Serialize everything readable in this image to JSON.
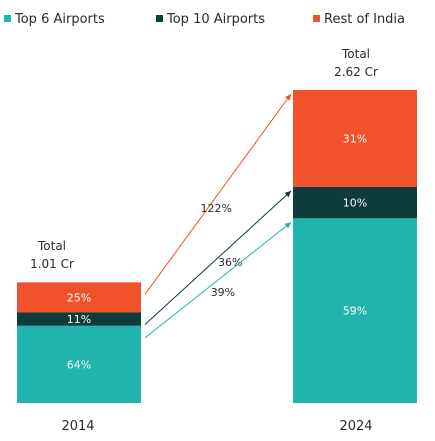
{
  "chart_data": {
    "type": "bar",
    "stacked": true,
    "categories": [
      "2014",
      "2024"
    ],
    "series": [
      {
        "name": "Top 6 Airports",
        "color": "#21b3ad",
        "values": [
          64,
          59
        ],
        "labels": [
          "64%",
          "59%"
        ]
      },
      {
        "name": "Top 10 Airports",
        "color": "#0e3b3c",
        "values": [
          11,
          10
        ],
        "labels": [
          "11%",
          "10%"
        ]
      },
      {
        "name": "Rest of India",
        "color": "#f0532c",
        "values": [
          25,
          31
        ],
        "labels": [
          "25%",
          "31%"
        ]
      }
    ],
    "totals": [
      {
        "label": "Total",
        "value": "1.01 Cr",
        "numeric": 1.01
      },
      {
        "label": "Total",
        "value": "2.62 Cr",
        "numeric": 2.62
      }
    ],
    "growth": [
      {
        "series": "Rest of India",
        "label": "122%"
      },
      {
        "series": "Top 10 Airports",
        "label": "36%"
      },
      {
        "series": "Top 6 Airports",
        "label": "39%"
      }
    ],
    "legend_position": "top",
    "grid": false
  }
}
